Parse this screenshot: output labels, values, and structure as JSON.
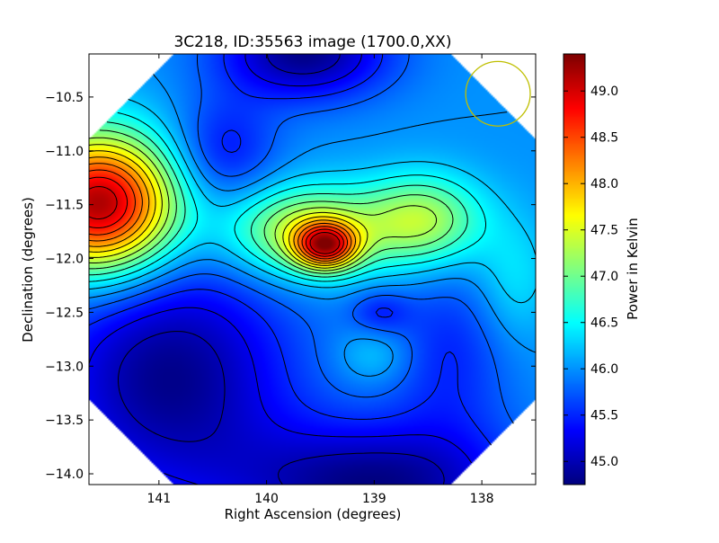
{
  "chart_data": {
    "type": "heatmap",
    "title": "3C218, ID:35563 image (1700.0,XX)",
    "xlabel": "Right Ascension (degrees)",
    "ylabel": "Declination (degrees)",
    "xlim": [
      141.65,
      137.5
    ],
    "ylim": [
      -14.1,
      -10.1
    ],
    "x_ticks": [
      141,
      140,
      139,
      138
    ],
    "x_tick_labels": [
      "141",
      "140",
      "139",
      "138"
    ],
    "y_ticks": [
      -10.5,
      -11.0,
      -11.5,
      -12.0,
      -12.5,
      -13.0,
      -13.5,
      -14.0
    ],
    "y_tick_labels": [
      "−10.5",
      "−11.0",
      "−11.5",
      "−12.0",
      "−12.5",
      "−13.0",
      "−13.5",
      "−14.0"
    ],
    "colorbar": {
      "label": "Power in Kelvin",
      "range": [
        44.75,
        49.4
      ],
      "ticks": [
        45.0,
        45.5,
        46.0,
        46.5,
        47.0,
        47.5,
        48.0,
        48.5,
        49.0
      ],
      "tick_labels": [
        "45.0",
        "45.5",
        "46.0",
        "46.5",
        "47.0",
        "47.5",
        "48.0",
        "48.5",
        "49.0"
      ],
      "colormap": "jet"
    },
    "background_level": 46.0,
    "field_components": [
      {
        "ra": 141.55,
        "dec": -11.5,
        "amplitude": 3.3,
        "sigma_ra": 0.5,
        "sigma_dec": 0.45
      },
      {
        "ra": 139.45,
        "dec": -11.88,
        "amplitude": 2.2,
        "sigma_ra": 0.2,
        "sigma_dec": 0.15
      },
      {
        "ra": 139.65,
        "dec": -11.75,
        "amplitude": 1.5,
        "sigma_ra": 0.5,
        "sigma_dec": 0.3
      },
      {
        "ra": 138.55,
        "dec": -11.65,
        "amplitude": 1.3,
        "sigma_ra": 0.4,
        "sigma_dec": 0.3
      },
      {
        "ra": 139.0,
        "dec": -12.9,
        "amplitude": 0.35,
        "sigma_ra": 0.25,
        "sigma_dec": 0.2
      },
      {
        "ra": 139.65,
        "dec": -10.1,
        "amplitude": -1.2,
        "sigma_ra": 0.55,
        "sigma_dec": 0.3
      },
      {
        "ra": 140.9,
        "dec": -13.1,
        "amplitude": -1.2,
        "sigma_ra": 0.8,
        "sigma_dec": 0.8
      },
      {
        "ra": 139.0,
        "dec": -14.1,
        "amplitude": -1.2,
        "sigma_ra": 0.9,
        "sigma_dec": 0.4
      },
      {
        "ra": 138.95,
        "dec": -12.5,
        "amplitude": -0.45,
        "sigma_ra": 0.2,
        "sigma_dec": 0.15
      },
      {
        "ra": 140.4,
        "dec": -11.0,
        "amplitude": -0.6,
        "sigma_ra": 0.35,
        "sigma_dec": 0.35
      },
      {
        "ra": 138.3,
        "dec": -12.9,
        "amplitude": -0.5,
        "sigma_ra": 0.4,
        "sigma_dec": 0.6
      },
      {
        "ra": 137.7,
        "dec": -12.2,
        "amplitude": 0.4,
        "sigma_ra": 0.25,
        "sigma_dec": 0.4
      }
    ],
    "contour_levels": [
      45.0,
      45.25,
      45.5,
      45.75,
      46.0,
      46.25,
      46.5,
      46.75,
      47.0,
      47.25,
      47.5,
      47.75,
      48.0,
      48.25,
      48.5,
      48.75,
      49.0
    ],
    "beam_circle": {
      "ra": 137.85,
      "dec": -10.47,
      "radius_deg": 0.3,
      "color": "#bfbf00"
    }
  }
}
